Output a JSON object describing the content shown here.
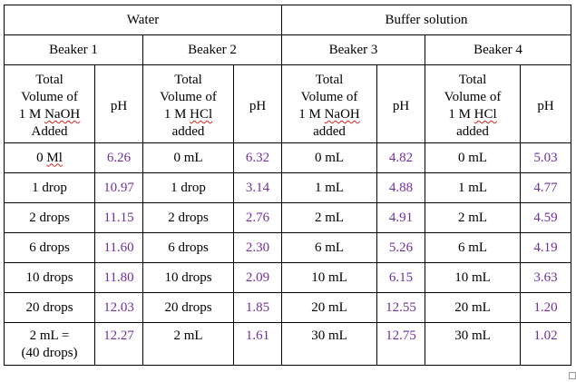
{
  "groups": {
    "water": "Water",
    "buffer": "Buffer solution"
  },
  "beakers": [
    "Beaker 1",
    "Beaker 2",
    "Beaker 3",
    "Beaker 4"
  ],
  "headers": {
    "volume_naoh": {
      "line1": "Total",
      "line2": "Volume of",
      "line3_pre": "1 M ",
      "line3_word": "NaOH",
      "line4": "Added"
    },
    "volume_hcl": {
      "line1": "Total",
      "line2": "Volume of",
      "line3_pre": "1 M ",
      "line3_word": "HCl",
      "line4": "added"
    },
    "volume_naoh_b3": {
      "line1": "Total",
      "line2": "Volume of",
      "line3_pre": "1 M ",
      "line3_word": "NaOH",
      "line4": "added"
    },
    "ph": "pH"
  },
  "rows": [
    {
      "b1_vol": "0 ",
      "b1_vol_word": "Ml",
      "b1_ph": "6.26",
      "b2_vol": "0 mL",
      "b2_ph": "6.32",
      "b3_vol": "0 mL",
      "b3_ph": "4.82",
      "b4_vol": "0 mL",
      "b4_ph": "5.03"
    },
    {
      "b1_vol": "1 drop",
      "b1_vol_word": "",
      "b1_ph": "10.97",
      "b2_vol": "1 drop",
      "b2_ph": "3.14",
      "b3_vol": "1 mL",
      "b3_ph": "4.88",
      "b4_vol": "1 mL",
      "b4_ph": "4.77"
    },
    {
      "b1_vol": "2 drops",
      "b1_vol_word": "",
      "b1_ph": "11.15",
      "b2_vol": "2 drops",
      "b2_ph": "2.76",
      "b3_vol": "2 mL",
      "b3_ph": "4.91",
      "b4_vol": "2 mL",
      "b4_ph": "4.59"
    },
    {
      "b1_vol": "6 drops",
      "b1_vol_word": "",
      "b1_ph": "11.60",
      "b2_vol": "6 drops",
      "b2_ph": "2.30",
      "b3_vol": "6 mL",
      "b3_ph": "5.26",
      "b4_vol": "6 mL",
      "b4_ph": "4.19"
    },
    {
      "b1_vol": "10 drops",
      "b1_vol_word": "",
      "b1_ph": "11.80",
      "b2_vol": "10 drops",
      "b2_ph": "2.09",
      "b3_vol": "10 mL",
      "b3_ph": "6.15",
      "b4_vol": "10 mL",
      "b4_ph": "3.63"
    },
    {
      "b1_vol": "20 drops",
      "b1_vol_word": "",
      "b1_ph": "12.03",
      "b2_vol": "20 drops",
      "b2_ph": "1.85",
      "b3_vol": "20 mL",
      "b3_ph": "12.55",
      "b4_vol": "20 mL",
      "b4_ph": "1.20"
    },
    {
      "b1_vol": "2 mL =",
      "b1_vol_word": "(40 drops)",
      "b1_ph": "12.27",
      "b2_vol": "2 mL",
      "b2_ph": "1.61",
      "b3_vol": "30 mL",
      "b3_ph": "12.75",
      "b4_vol": "30 mL",
      "b4_ph": "1.02"
    }
  ],
  "colors": {
    "ph_value": "#7030a0",
    "spellcheck_underline": "#e02020",
    "border": "#000000"
  }
}
